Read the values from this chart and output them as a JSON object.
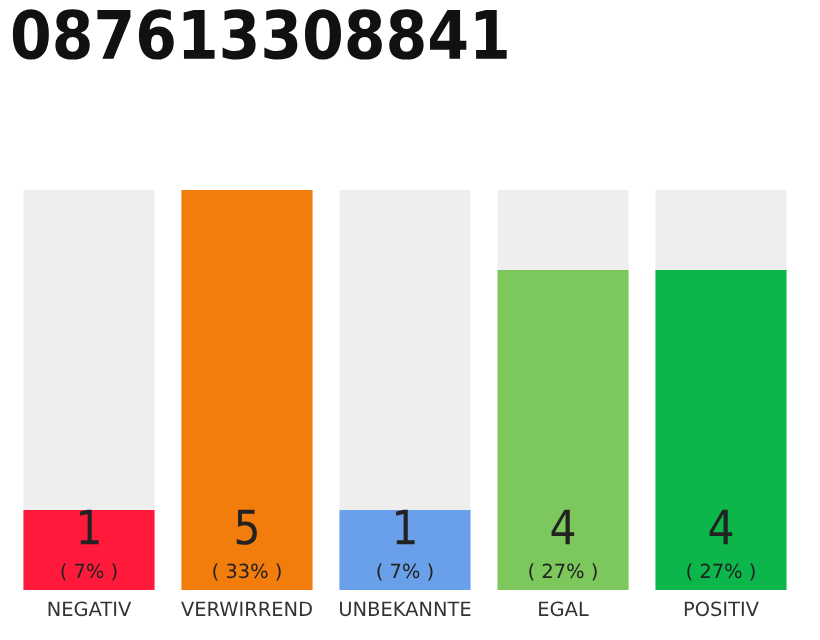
{
  "chart_data": {
    "type": "bar",
    "title": "087613308841",
    "categories": [
      "NEGATIV",
      "VERWIRREND",
      "UNBEKANNTE",
      "EGAL",
      "POSITIV"
    ],
    "stacked": true,
    "ylim": [
      0,
      5
    ],
    "tick_labels": "x",
    "series": [
      {
        "colors": [
          "#ff1a3c",
          "#f27c0c",
          "#6aa0ea",
          "#7dc85c",
          "#0db64a"
        ],
        "values": [
          1,
          5,
          1,
          4,
          4
        ],
        "value_labels": [
          "1\n( 7% )",
          "5\n( 33% )",
          "1\n( 7% )",
          "4\n( 27% )",
          "4\n( 27% )"
        ]
      },
      {
        "color": "#eeeeee",
        "values": [
          4,
          0,
          4,
          1,
          1
        ]
      }
    ]
  }
}
